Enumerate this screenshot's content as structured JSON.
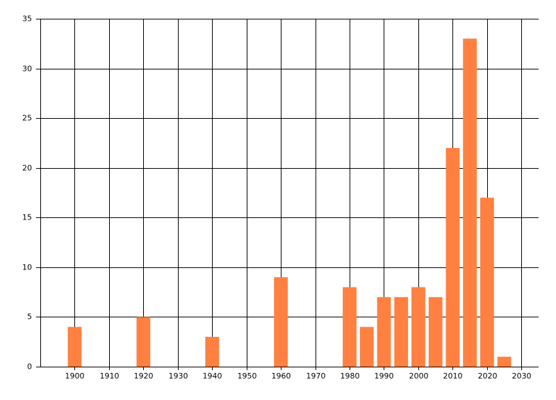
{
  "chart_data": {
    "type": "bar",
    "x": [
      1900,
      1920,
      1940,
      1960,
      1980,
      1985,
      1990,
      1995,
      2000,
      2005,
      2010,
      2015,
      2020,
      2025
    ],
    "values": [
      4,
      5,
      3,
      9,
      8,
      4,
      7,
      7,
      8,
      7,
      22,
      33,
      17,
      1
    ],
    "color": "#ff8040",
    "xlim": [
      1890,
      2035
    ],
    "xticks": [
      1900,
      1910,
      1920,
      1930,
      1940,
      1950,
      1960,
      1970,
      1980,
      1990,
      2000,
      2010,
      2020,
      2030
    ],
    "ylim": [
      0,
      35
    ],
    "yticks": [
      0,
      5,
      10,
      15,
      20,
      25,
      30,
      35
    ],
    "grid": true
  }
}
